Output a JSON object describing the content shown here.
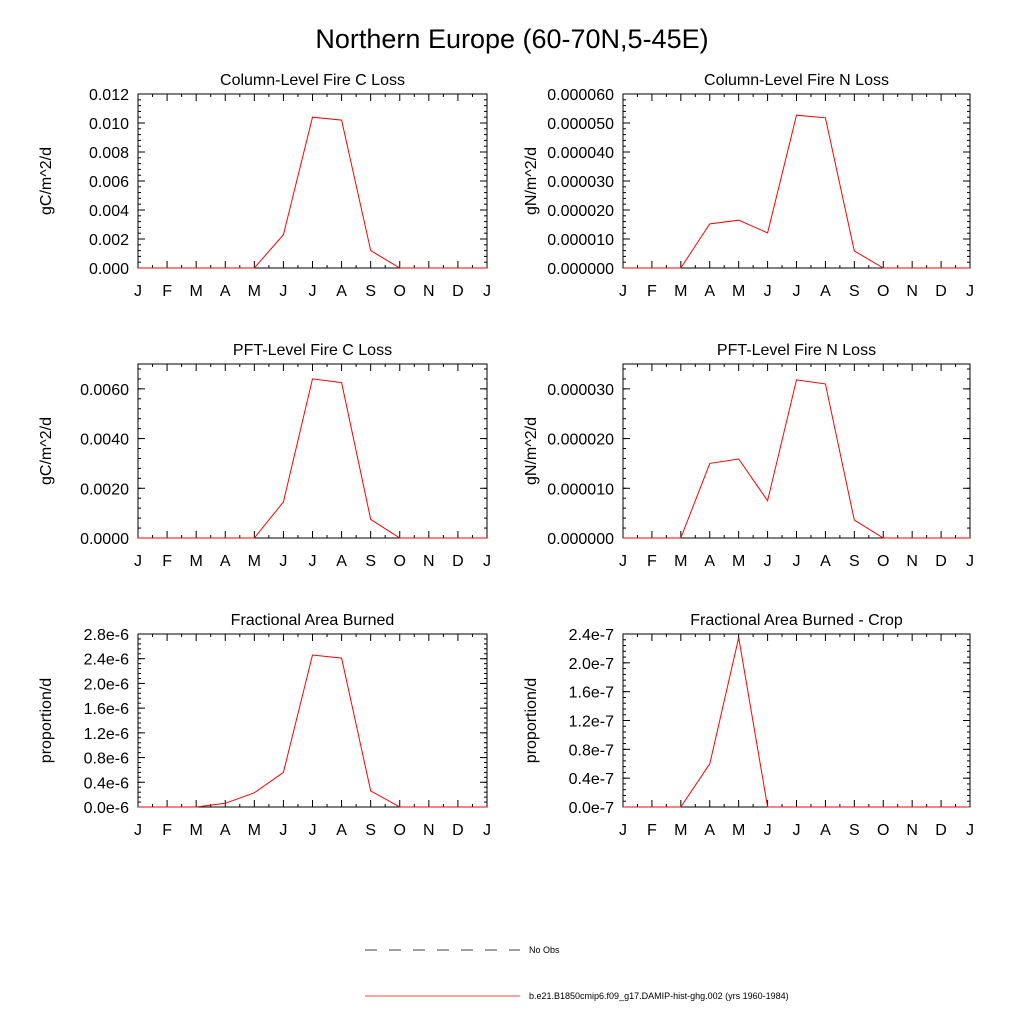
{
  "figure": {
    "title": "Northern Europe (60-70N,5-45E)"
  },
  "legend": {
    "placement": "bottom-center",
    "entries": [
      {
        "label": "No Obs",
        "color": "#000000",
        "dash": "dashed"
      },
      {
        "label": "b.e21.B1850cmip6.f09_g17.DAMIP-hist-ghg.002 (yrs 1960-1984)",
        "color": "#ff0000",
        "dash": "solid"
      }
    ]
  },
  "chart_data": [
    {
      "type": "line",
      "title": "Column-Level Fire C Loss",
      "ylabel": "gC/m^2/d",
      "categories": [
        "J",
        "F",
        "M",
        "A",
        "M",
        "J",
        "J",
        "A",
        "S",
        "O",
        "N",
        "D",
        "J"
      ],
      "ylim": [
        0,
        0.012
      ],
      "yticks": [
        0,
        0.002,
        0.004,
        0.006,
        0.008,
        0.01,
        0.012
      ],
      "yticklabels": [
        "0.000",
        "0.002",
        "0.004",
        "0.006",
        "0.008",
        "0.010",
        "0.012"
      ],
      "series": [
        {
          "values": [
            0,
            0,
            0,
            0,
            0,
            0.0023,
            0.0104,
            0.0102,
            0.0012,
            0,
            0,
            0,
            0
          ]
        }
      ]
    },
    {
      "type": "line",
      "title": "Column-Level Fire N Loss",
      "ylabel": "gN/m^2/d",
      "categories": [
        "J",
        "F",
        "M",
        "A",
        "M",
        "J",
        "J",
        "A",
        "S",
        "O",
        "N",
        "D",
        "J"
      ],
      "ylim": [
        0,
        6e-05
      ],
      "yticks": [
        0,
        1e-05,
        2e-05,
        3e-05,
        4e-05,
        5e-05,
        6e-05
      ],
      "yticklabels": [
        "0.000000",
        "0.000010",
        "0.000020",
        "0.000030",
        "0.000040",
        "0.000050",
        "0.000060"
      ],
      "series": [
        {
          "values": [
            0,
            0,
            0,
            1.52e-05,
            1.65e-05,
            1.21e-05,
            5.27e-05,
            5.18e-05,
            5.9e-06,
            0,
            0,
            0,
            0
          ]
        }
      ]
    },
    {
      "type": "line",
      "title": "PFT-Level Fire C Loss",
      "ylabel": "gC/m^2/d",
      "categories": [
        "J",
        "F",
        "M",
        "A",
        "M",
        "J",
        "J",
        "A",
        "S",
        "O",
        "N",
        "D",
        "J"
      ],
      "ylim": [
        0,
        0.007
      ],
      "yticks": [
        0,
        0.002,
        0.004,
        0.006
      ],
      "yticklabels": [
        "0.0000",
        "0.0020",
        "0.0040",
        "0.0060"
      ],
      "series": [
        {
          "values": [
            0,
            0,
            0,
            0,
            0,
            0.00145,
            0.0064,
            0.00625,
            0.00075,
            0,
            0,
            0,
            0
          ]
        }
      ]
    },
    {
      "type": "line",
      "title": "PFT-Level Fire N Loss",
      "ylabel": "gN/m^2/d",
      "categories": [
        "J",
        "F",
        "M",
        "A",
        "M",
        "J",
        "J",
        "A",
        "S",
        "O",
        "N",
        "D",
        "J"
      ],
      "ylim": [
        0,
        3.5e-05
      ],
      "yticks": [
        0,
        1e-05,
        2e-05,
        3e-05
      ],
      "yticklabels": [
        "0.000000",
        "0.000010",
        "0.000020",
        "0.000030"
      ],
      "series": [
        {
          "values": [
            0,
            0,
            0,
            1.5e-05,
            1.59e-05,
            7.5e-06,
            3.18e-05,
            3.1e-05,
            3.6e-06,
            0,
            0,
            0,
            0
          ]
        }
      ]
    },
    {
      "type": "line",
      "title": "Fractional Area Burned",
      "ylabel": "proportion/d",
      "categories": [
        "J",
        "F",
        "M",
        "A",
        "M",
        "J",
        "J",
        "A",
        "S",
        "O",
        "N",
        "D",
        "J"
      ],
      "ylim": [
        0,
        2.8e-06
      ],
      "yticks": [
        0,
        4e-07,
        8e-07,
        1.2e-06,
        1.6e-06,
        2e-06,
        2.4e-06,
        2.8e-06
      ],
      "yticklabels": [
        "0.0e-6",
        "0.4e-6",
        "0.8e-6",
        "1.2e-6",
        "1.6e-6",
        "2.0e-6",
        "2.4e-6",
        "2.8e-6"
      ],
      "series": [
        {
          "values": [
            0,
            0,
            0,
            6e-08,
            2.3e-07,
            5.6e-07,
            2.46e-06,
            2.41e-06,
            2.6e-07,
            0,
            0,
            0,
            0
          ]
        }
      ]
    },
    {
      "type": "line",
      "title": "Fractional Area Burned - Crop",
      "ylabel": "proportion/d",
      "categories": [
        "J",
        "F",
        "M",
        "A",
        "M",
        "J",
        "J",
        "A",
        "S",
        "O",
        "N",
        "D",
        "J"
      ],
      "ylim": [
        0,
        2.4e-07
      ],
      "yticks": [
        0,
        4e-08,
        8e-08,
        1.2e-07,
        1.6e-07,
        2e-07,
        2.4e-07
      ],
      "yticklabels": [
        "0.0e-7",
        "0.4e-7",
        "0.8e-7",
        "1.2e-7",
        "1.6e-7",
        "2.0e-7",
        "2.4e-7"
      ],
      "series": [
        {
          "values": [
            0,
            0,
            0,
            6e-08,
            2.35e-07,
            0,
            0,
            0,
            0,
            0,
            0,
            0,
            0
          ]
        }
      ]
    }
  ]
}
